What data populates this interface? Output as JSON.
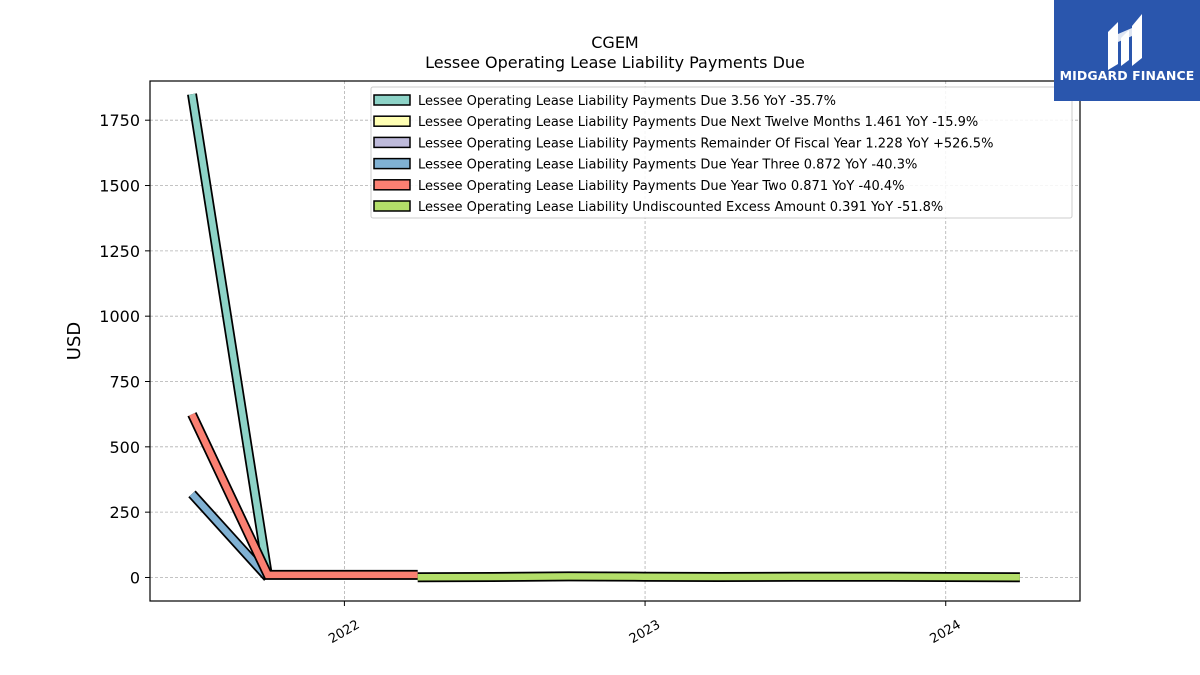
{
  "logo": {
    "text": "MIDGARD FINANCE",
    "color": "#2a56ad",
    "icon": "midgard-logo-icon"
  },
  "chart_data": {
    "type": "area",
    "title": "CGEM",
    "subtitle": "Lessee Operating Lease Liability Payments Due",
    "xlabel": "",
    "ylabel": "USD",
    "xlim": [
      "2021-05-10",
      "2024-06-12"
    ],
    "ylim": [
      -90,
      1900
    ],
    "yticks": [
      0,
      250,
      500,
      750,
      1000,
      1250,
      1500,
      1750
    ],
    "ytick_labels": [
      "0",
      "250",
      "500",
      "750",
      "1000",
      "1250",
      "1500",
      "1750"
    ],
    "xticks": [
      "2022-01-01",
      "2023-01-01",
      "2024-01-01"
    ],
    "xtick_labels": [
      "2022",
      "2023",
      "2024"
    ],
    "grid": true,
    "legend_position": "top-right",
    "series": [
      {
        "name": "Lessee Operating Lease Liability Payments Due",
        "legend": "Lessee Operating Lease Liability Payments Due  3.56 YoY -35.7%",
        "color": "#8dd3c7",
        "points": [
          [
            "2021-06-30",
            1850
          ],
          [
            "2021-09-30",
            10
          ]
        ]
      },
      {
        "name": "Lessee Operating Lease Liability Payments Due Next Twelve Months",
        "legend": "Lessee Operating Lease Liability Payments Due Next Twelve Months  1.461 YoY -15.9%",
        "color": "#ffffb3",
        "points": []
      },
      {
        "name": "Lessee Operating Lease Liability Payments Remainder Of Fiscal Year",
        "legend": "Lessee Operating Lease Liability Payments Remainder Of Fiscal Year  1.228 YoY +526.5%",
        "color": "#bebada",
        "points": []
      },
      {
        "name": "Lessee Operating Lease Liability Payments Due Year Three",
        "legend": "Lessee Operating Lease Liability Payments Due Year Three  0.872 YoY -40.3%",
        "color": "#80b1d3",
        "points": [
          [
            "2021-06-30",
            320
          ],
          [
            "2021-09-30",
            0
          ]
        ]
      },
      {
        "name": "Lessee Operating Lease Liability Payments Due Year Two",
        "legend": "Lessee Operating Lease Liability Payments Due Year Two  0.871 YoY -40.4%",
        "color": "#fb8072",
        "points": [
          [
            "2021-06-30",
            625
          ],
          [
            "2021-09-30",
            10
          ],
          [
            "2022-03-31",
            10
          ]
        ]
      },
      {
        "name": "Lessee Operating Lease Liability Undiscounted Excess Amount",
        "legend": "Lessee Operating Lease Liability Undiscounted Excess Amount  0.391 YoY -51.8%",
        "color": "#b3de69",
        "points": [
          [
            "2022-03-31",
            1
          ],
          [
            "2022-06-30",
            2
          ],
          [
            "2022-09-30",
            4
          ],
          [
            "2022-12-31",
            3
          ],
          [
            "2023-03-31",
            2
          ],
          [
            "2023-06-30",
            3
          ],
          [
            "2023-09-30",
            3
          ],
          [
            "2023-12-31",
            2
          ],
          [
            "2024-03-31",
            1
          ]
        ]
      }
    ]
  }
}
